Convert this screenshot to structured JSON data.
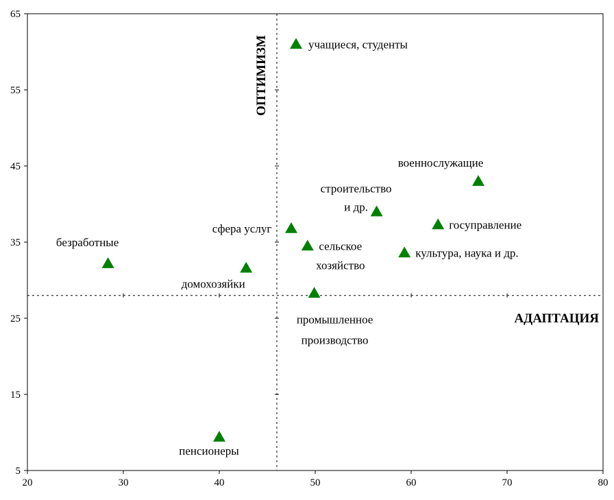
{
  "chart_data": {
    "type": "scatter",
    "xlim": [
      20,
      80
    ],
    "ylim": [
      5,
      65
    ],
    "x_ticks": [
      20,
      30,
      40,
      50,
      60,
      70,
      80
    ],
    "y_ticks": [
      5,
      15,
      25,
      35,
      45,
      55,
      65
    ],
    "grid": false,
    "marker": "triangle",
    "marker_color": "#008000",
    "reference_lines": {
      "x": 46,
      "y": 28,
      "x_line_title": "ОПТИМИЗМ",
      "y_line_title": "АДАПТАЦИЯ"
    },
    "points": [
      {
        "x": 48,
        "y": 61,
        "label_lines": [
          "учащиеся, студенты"
        ]
      },
      {
        "x": 67,
        "y": 43,
        "label_lines": [
          "военнослужащие"
        ]
      },
      {
        "x": 56.4,
        "y": 39,
        "label_lines": [
          "строительство",
          "и др."
        ]
      },
      {
        "x": 62.8,
        "y": 37.3,
        "label_lines": [
          "госуправление"
        ]
      },
      {
        "x": 47.5,
        "y": 36.8,
        "label_lines": [
          "сфера услуг"
        ]
      },
      {
        "x": 49.2,
        "y": 34.5,
        "label_lines": [
          "сельское",
          "хозяйство"
        ]
      },
      {
        "x": 59.3,
        "y": 33.6,
        "label_lines": [
          "культура, наука и др."
        ]
      },
      {
        "x": 28.4,
        "y": 32.2,
        "label_lines": [
          "безработные"
        ]
      },
      {
        "x": 42.8,
        "y": 31.6,
        "label_lines": [
          "домохозяйки"
        ]
      },
      {
        "x": 49.9,
        "y": 28.3,
        "label_lines": [
          "промышленное",
          "производство"
        ]
      },
      {
        "x": 40,
        "y": 9.4,
        "label_lines": [
          "пенсионеры"
        ]
      }
    ]
  }
}
